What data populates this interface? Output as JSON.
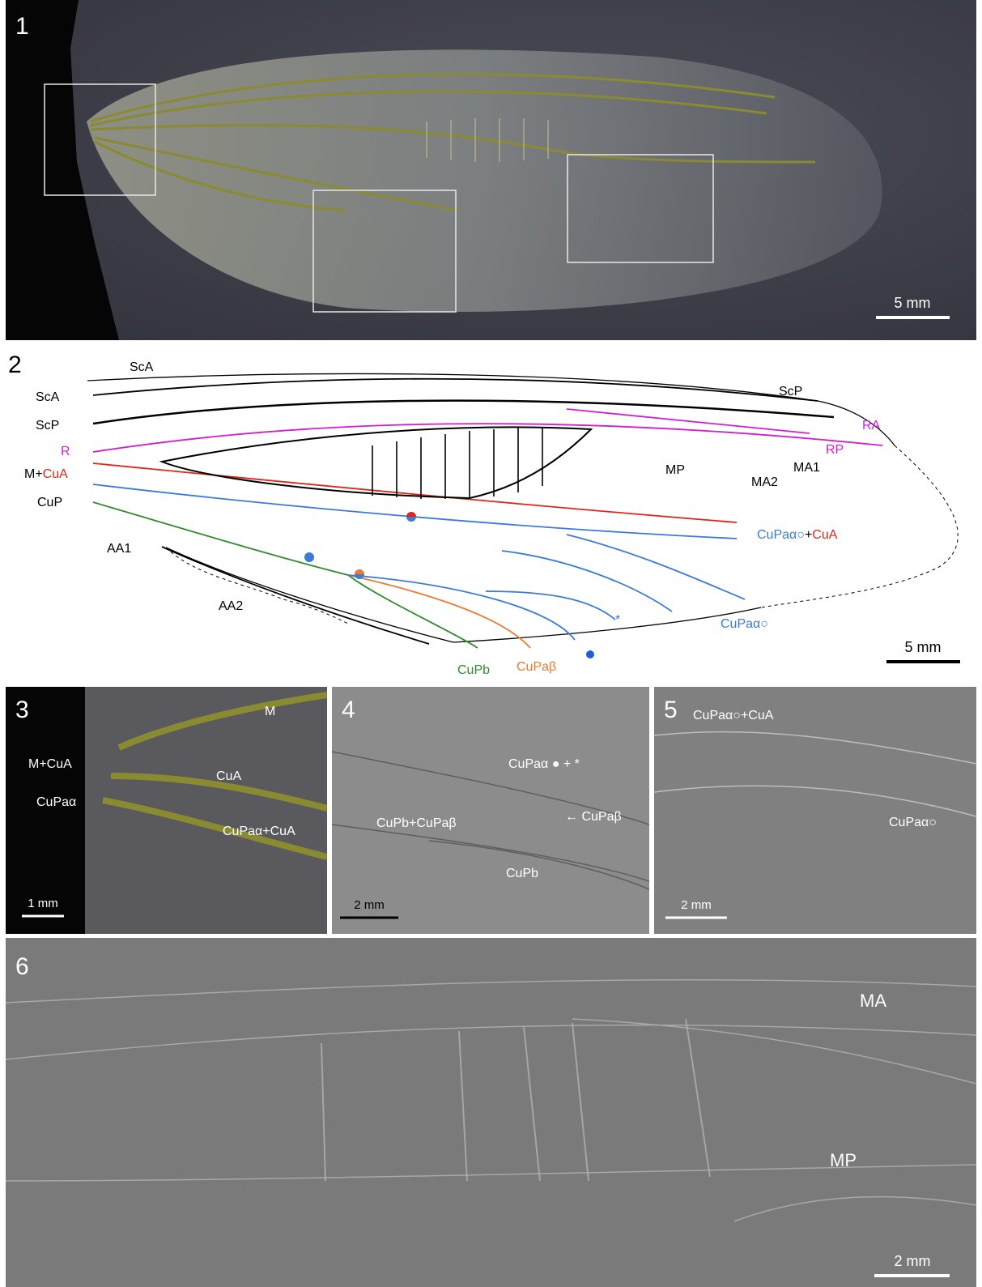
{
  "figure": {
    "panel_numbers": [
      "1",
      "2",
      "3",
      "4",
      "5",
      "6"
    ],
    "colors": {
      "black": "#000000",
      "magenta": "#d11ed1",
      "red": "#e0261b",
      "blue": "#3a7ad9",
      "green": "#2e8b2e",
      "orange": "#f07830",
      "photo_background": "#3b3c46",
      "vein_yellow": "#8a8a30"
    }
  },
  "panel1": {
    "scale_label": "5 mm"
  },
  "panel2": {
    "scale_label": "5 mm",
    "labels": {
      "sca_top": "ScA",
      "sca": "ScA",
      "scp": "ScP",
      "scp_right": "ScP",
      "r": "R",
      "ra": "RA",
      "rp": "RP",
      "ma1": "MA1",
      "ma2": "MA2",
      "mp": "MP",
      "m_prefix": "M+",
      "m_cua": "CuA",
      "cup": "CuP",
      "aa1": "AA1",
      "aa2": "AA2",
      "cupa_alpha_plus": "CuPaα○",
      "plus_sign": "+",
      "cua_red": "CuA",
      "cupa_alpha": "CuPaα○",
      "cupb": "CuPb",
      "cupa_beta": "CuPaβ",
      "asterisk": "*"
    }
  },
  "panel3": {
    "scale_label": "1 mm",
    "labels": {
      "m": "M",
      "m_cua": "M+CuA",
      "cua": "CuA",
      "cupa_alpha": "CuPaα",
      "cupa_alpha_cua": "CuPaα+CuA"
    }
  },
  "panel4": {
    "scale_label": "2 mm",
    "labels": {
      "cupa_alpha_dot": "CuPaα ● + *",
      "cupb_cupa_beta": "CuPb+CuPaβ",
      "cupa_beta": "← CuPaβ",
      "cupb": "CuPb"
    }
  },
  "panel5": {
    "scale_label": "2 mm",
    "labels": {
      "cupa_alpha_cua": "CuPaα○+CuA",
      "cupa_alpha": "CuPaα○"
    }
  },
  "panel6": {
    "scale_label": "2 mm",
    "labels": {
      "ma": "MA",
      "mp": "MP"
    }
  }
}
